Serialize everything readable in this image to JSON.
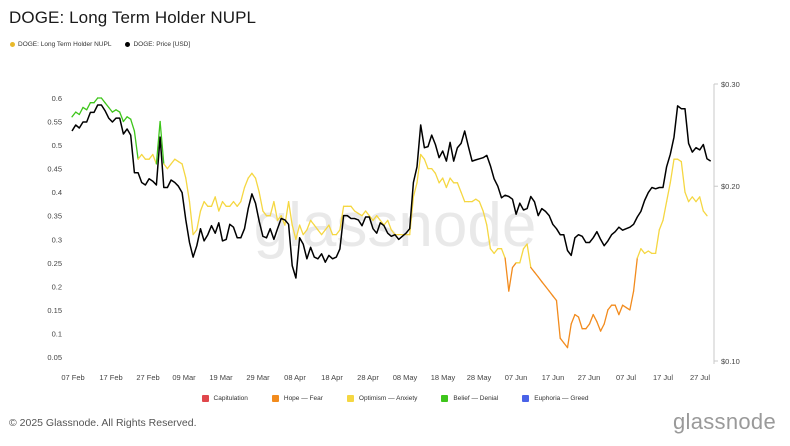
{
  "title": "DOGE: Long Term Holder NUPL",
  "legend_top": [
    {
      "label": "DOGE: Long Term Holder NUPL",
      "color": "#e8b92a"
    },
    {
      "label": "DOGE: Price [USD]",
      "color": "#000000"
    }
  ],
  "legend_bottom": [
    {
      "label": "Capitulation",
      "color": "#e0474c"
    },
    {
      "label": "Hope — Fear",
      "color": "#f28b1d"
    },
    {
      "label": "Optimism — Anxiety",
      "color": "#f5d742"
    },
    {
      "label": "Belief — Denial",
      "color": "#3ec51b"
    },
    {
      "label": "Euphoria — Greed",
      "color": "#4a63e8"
    }
  ],
  "footer": "© 2025 Glassnode. All Rights Reserved.",
  "brand": "glassnode",
  "watermark": "glassnode",
  "chart_data": {
    "type": "line",
    "x_tick_labels": [
      "07 Feb",
      "17 Feb",
      "27 Feb",
      "09 Mar",
      "19 Mar",
      "29 Mar",
      "08 Apr",
      "18 Apr",
      "28 Apr",
      "08 May",
      "18 May",
      "28 May",
      "07 Jun",
      "17 Jun",
      "27 Jun",
      "07 Jul",
      "17 Jul",
      "27 Jul"
    ],
    "y_left_ticks": [
      "0.6",
      "0.55",
      "0.5",
      "0.45",
      "0.4",
      "0.35",
      "0.3",
      "0.25",
      "0.2",
      "0.15",
      "0.1",
      "0.05"
    ],
    "y_left_range": [
      0.03,
      0.65
    ],
    "y_right_ticks": [
      "$0.30",
      "$0.20",
      "$0.10"
    ],
    "y_right_range": [
      0.1,
      0.3
    ],
    "y_right_scale": "log",
    "grid": false,
    "zones": [
      {
        "name": "Capitulation",
        "from": -1.0,
        "to": 0.0,
        "color": "#e0474c"
      },
      {
        "name": "Hope — Fear",
        "from": 0.0,
        "to": 0.25,
        "color": "#f28b1d"
      },
      {
        "name": "Optimism — Anxiety",
        "from": 0.25,
        "to": 0.5,
        "color": "#f5d742"
      },
      {
        "name": "Belief — Denial",
        "from": 0.5,
        "to": 0.75,
        "color": "#3ec51b"
      },
      {
        "name": "Euphoria — Greed",
        "from": 0.75,
        "to": 1.0,
        "color": "#4a63e8"
      }
    ],
    "series": [
      {
        "name": "DOGE: Long Term Holder NUPL",
        "axis": "left",
        "values": [
          0.56,
          0.57,
          0.565,
          0.58,
          0.575,
          0.59,
          0.59,
          0.6,
          0.6,
          0.59,
          0.58,
          0.57,
          0.575,
          0.57,
          0.55,
          0.56,
          0.555,
          0.53,
          0.47,
          0.48,
          0.47,
          0.47,
          0.48,
          0.46,
          0.55,
          0.46,
          0.45,
          0.46,
          0.47,
          0.465,
          0.46,
          0.43,
          0.38,
          0.31,
          0.32,
          0.36,
          0.38,
          0.37,
          0.37,
          0.39,
          0.36,
          0.38,
          0.37,
          0.37,
          0.38,
          0.37,
          0.38,
          0.41,
          0.43,
          0.44,
          0.43,
          0.4,
          0.36,
          0.35,
          0.35,
          0.38,
          0.34,
          0.35,
          0.33,
          0.38,
          0.33,
          0.3,
          0.33,
          0.31,
          0.32,
          0.34,
          0.33,
          0.32,
          0.31,
          0.32,
          0.33,
          0.31,
          0.31,
          0.32,
          0.37,
          0.37,
          0.37,
          0.36,
          0.355,
          0.35,
          0.36,
          0.35,
          0.34,
          0.35,
          0.34,
          0.33,
          0.34,
          0.32,
          0.31,
          0.31,
          0.31,
          0.31,
          0.31,
          0.39,
          0.42,
          0.48,
          0.47,
          0.45,
          0.45,
          0.44,
          0.42,
          0.43,
          0.41,
          0.43,
          0.42,
          0.42,
          0.4,
          0.38,
          0.38,
          0.38,
          0.385,
          0.38,
          0.36,
          0.33,
          0.28,
          0.27,
          0.28,
          0.28,
          0.26,
          0.19,
          0.24,
          0.25,
          0.25,
          0.28,
          0.29,
          0.24,
          0.23,
          0.22,
          0.21,
          0.2,
          0.19,
          0.18,
          0.17,
          0.09,
          0.08,
          0.07,
          0.12,
          0.14,
          0.135,
          0.11,
          0.11,
          0.12,
          0.14,
          0.125,
          0.105,
          0.12,
          0.15,
          0.16,
          0.16,
          0.14,
          0.16,
          0.155,
          0.15,
          0.19,
          0.26,
          0.28,
          0.27,
          0.275,
          0.27,
          0.27,
          0.32,
          0.34,
          0.38,
          0.42,
          0.47,
          0.47,
          0.465,
          0.4,
          0.38,
          0.39,
          0.38,
          0.39,
          0.36,
          0.35
        ]
      },
      {
        "name": "DOGE: Price [USD]",
        "axis": "right",
        "values": [
          0.249,
          0.255,
          0.252,
          0.258,
          0.258,
          0.268,
          0.268,
          0.276,
          0.276,
          0.27,
          0.262,
          0.258,
          0.262,
          0.262,
          0.246,
          0.251,
          0.245,
          0.211,
          0.211,
          0.203,
          0.201,
          0.206,
          0.204,
          0.201,
          0.243,
          0.199,
          0.199,
          0.205,
          0.203,
          0.2,
          0.195,
          0.175,
          0.16,
          0.151,
          0.158,
          0.169,
          0.161,
          0.165,
          0.171,
          0.166,
          0.173,
          0.161,
          0.162,
          0.172,
          0.17,
          0.163,
          0.163,
          0.169,
          0.183,
          0.194,
          0.187,
          0.174,
          0.164,
          0.163,
          0.169,
          0.162,
          0.169,
          0.176,
          0.175,
          0.172,
          0.146,
          0.139,
          0.163,
          0.159,
          0.15,
          0.157,
          0.151,
          0.15,
          0.153,
          0.148,
          0.152,
          0.15,
          0.151,
          0.156,
          0.178,
          0.178,
          0.176,
          0.176,
          0.175,
          0.171,
          0.177,
          0.177,
          0.169,
          0.166,
          0.173,
          0.171,
          0.166,
          0.164,
          0.165,
          0.162,
          0.164,
          0.166,
          0.169,
          0.203,
          0.216,
          0.255,
          0.233,
          0.234,
          0.245,
          0.236,
          0.224,
          0.23,
          0.221,
          0.238,
          0.221,
          0.233,
          0.237,
          0.249,
          0.234,
          0.221,
          0.222,
          0.223,
          0.224,
          0.226,
          0.217,
          0.206,
          0.2,
          0.191,
          0.193,
          0.192,
          0.19,
          0.179,
          0.187,
          0.182,
          0.183,
          0.192,
          0.188,
          0.178,
          0.183,
          0.181,
          0.178,
          0.172,
          0.169,
          0.165,
          0.165,
          0.155,
          0.152,
          0.163,
          0.165,
          0.164,
          0.16,
          0.16,
          0.163,
          0.167,
          0.162,
          0.158,
          0.161,
          0.165,
          0.167,
          0.17,
          0.168,
          0.169,
          0.17,
          0.172,
          0.177,
          0.181,
          0.189,
          0.195,
          0.199,
          0.198,
          0.199,
          0.199,
          0.216,
          0.227,
          0.243,
          0.275,
          0.272,
          0.272,
          0.237,
          0.229,
          0.233,
          0.231,
          0.236,
          0.223,
          0.221
        ]
      }
    ]
  }
}
